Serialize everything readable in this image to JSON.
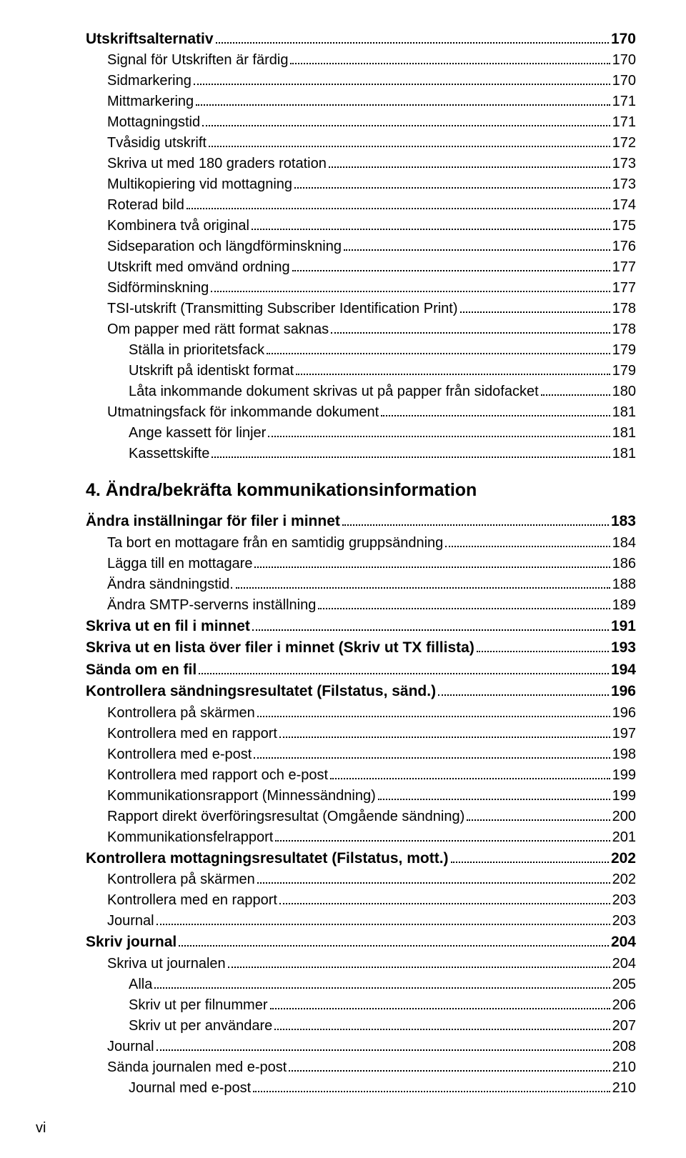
{
  "toc": [
    {
      "level": 0,
      "title": "Utskriftsalternativ",
      "page": "170"
    },
    {
      "level": 1,
      "title": "Signal för Utskriften är färdig",
      "page": "170"
    },
    {
      "level": 1,
      "title": "Sidmarkering",
      "page": "170"
    },
    {
      "level": 1,
      "title": "Mittmarkering",
      "page": "171"
    },
    {
      "level": 1,
      "title": "Mottagningstid",
      "page": "171"
    },
    {
      "level": 1,
      "title": "Tvåsidig utskrift",
      "page": "172"
    },
    {
      "level": 1,
      "title": "Skriva ut med 180 graders rotation",
      "page": "173"
    },
    {
      "level": 1,
      "title": "Multikopiering vid mottagning",
      "page": "173"
    },
    {
      "level": 1,
      "title": "Roterad bild",
      "page": "174"
    },
    {
      "level": 1,
      "title": "Kombinera två original",
      "page": "175"
    },
    {
      "level": 1,
      "title": "Sidseparation och längdförminskning",
      "page": "176"
    },
    {
      "level": 1,
      "title": "Utskrift med omvänd ordning",
      "page": "177"
    },
    {
      "level": 1,
      "title": "Sidförminskning",
      "page": "177"
    },
    {
      "level": 1,
      "title": "TSI-utskrift (Transmitting Subscriber Identification Print)",
      "page": "178"
    },
    {
      "level": 1,
      "title": "Om papper med rätt format saknas",
      "page": "178"
    },
    {
      "level": 2,
      "title": "Ställa in prioritetsfack",
      "page": "179"
    },
    {
      "level": 2,
      "title": "Utskrift på identiskt format",
      "page": "179"
    },
    {
      "level": 2,
      "title": "Låta inkommande dokument skrivas ut på papper från sidofacket",
      "page": "180"
    },
    {
      "level": 1,
      "title": "Utmatningsfack för inkommande dokument",
      "page": "181"
    },
    {
      "level": 2,
      "title": "Ange kassett för linjer",
      "page": "181"
    },
    {
      "level": 2,
      "title": "Kassettskifte",
      "page": "181"
    }
  ],
  "chapter_heading": "4. Ändra/bekräfta kommunikationsinformation",
  "toc2": [
    {
      "level": 0,
      "title": "Ändra inställningar för filer i minnet",
      "page": "183"
    },
    {
      "level": 1,
      "title": "Ta bort en mottagare från en samtidig gruppsändning",
      "page": "184"
    },
    {
      "level": 1,
      "title": "Lägga till en mottagare",
      "page": "186"
    },
    {
      "level": 1,
      "title": "Ändra sändningstid.",
      "page": "188"
    },
    {
      "level": 1,
      "title": "Ändra SMTP-serverns inställning",
      "page": "189"
    },
    {
      "level": 0,
      "title": "Skriva ut en fil i minnet",
      "page": "191"
    },
    {
      "level": 0,
      "title": "Skriva ut en lista över filer i minnet (Skriv ut TX fillista)",
      "page": "193"
    },
    {
      "level": 0,
      "title": "Sända om en fil",
      "page": "194"
    },
    {
      "level": 0,
      "title": "Kontrollera sändningsresultatet (Filstatus, sänd.)",
      "page": "196"
    },
    {
      "level": 1,
      "title": "Kontrollera på skärmen",
      "page": "196"
    },
    {
      "level": 1,
      "title": "Kontrollera med en rapport",
      "page": "197"
    },
    {
      "level": 1,
      "title": "Kontrollera med e-post",
      "page": "198"
    },
    {
      "level": 1,
      "title": "Kontrollera med rapport och e-post",
      "page": "199"
    },
    {
      "level": 1,
      "title": "Kommunikationsrapport (Minnessändning)",
      "page": "199"
    },
    {
      "level": 1,
      "title": "Rapport direkt överföringsresultat (Omgående sändning)",
      "page": "200"
    },
    {
      "level": 1,
      "title": "Kommunikationsfelrapport",
      "page": "201"
    },
    {
      "level": 0,
      "title": "Kontrollera mottagningsresultatet (Filstatus, mott.)",
      "page": "202"
    },
    {
      "level": 1,
      "title": "Kontrollera på skärmen",
      "page": "202"
    },
    {
      "level": 1,
      "title": "Kontrollera med en rapport",
      "page": "203"
    },
    {
      "level": 1,
      "title": "Journal",
      "page": "203"
    },
    {
      "level": 0,
      "title": "Skriv journal",
      "page": "204"
    },
    {
      "level": 1,
      "title": "Skriva ut journalen",
      "page": "204"
    },
    {
      "level": 2,
      "title": "Alla",
      "page": "205"
    },
    {
      "level": 2,
      "title": "Skriv ut per filnummer",
      "page": "206"
    },
    {
      "level": 2,
      "title": "Skriv ut per användare",
      "page": "207"
    },
    {
      "level": 1,
      "title": "Journal",
      "page": "208"
    },
    {
      "level": 1,
      "title": "Sända journalen med e-post",
      "page": "210"
    },
    {
      "level": 2,
      "title": "Journal med e-post",
      "page": "210"
    }
  ],
  "page_footer": "vi"
}
